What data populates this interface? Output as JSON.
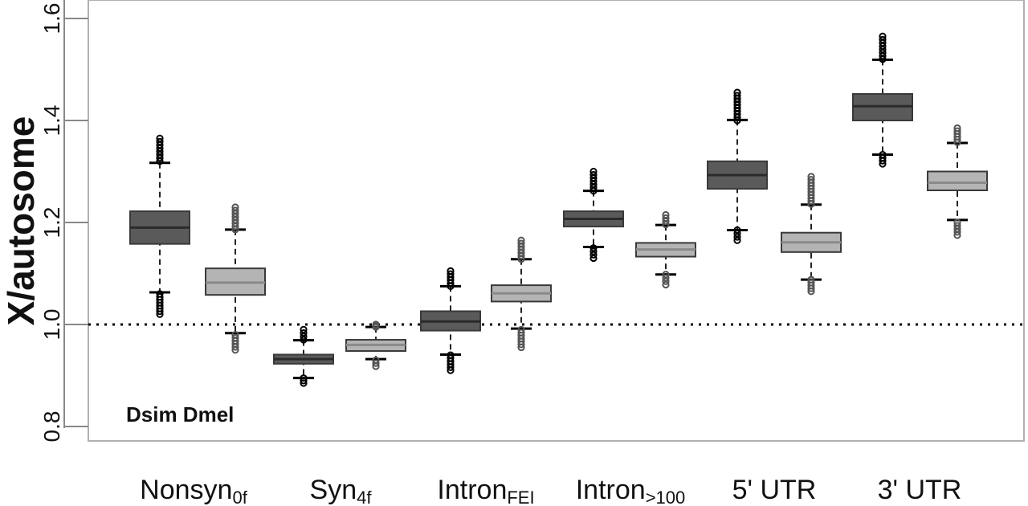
{
  "chart_data": {
    "type": "box",
    "ylabel": "X/autosome",
    "ylim": [
      0.78,
      1.62
    ],
    "yticks": [
      "0.8",
      "1.0",
      "1.2",
      "1.4",
      "1.6"
    ],
    "reference_line": 1.0,
    "legend": "Dsim Dmel",
    "colors": {
      "Dsim": "#5a5a5a",
      "Dmel": "#b4b4b4"
    },
    "categories": [
      {
        "label": "Nonsyn",
        "sub": "0f"
      },
      {
        "label": "Syn",
        "sub": "4f"
      },
      {
        "label": "Intron",
        "sub": "FEI"
      },
      {
        "label": "Intron",
        "sub": ">100"
      },
      {
        "label": "5' UTR",
        "sub": ""
      },
      {
        "label": "3' UTR",
        "sub": ""
      }
    ],
    "series": [
      {
        "name": "Dsim",
        "boxes": [
          {
            "min": 1.063,
            "q1": 1.158,
            "median": 1.19,
            "q3": 1.222,
            "max": 1.317,
            "outliers_low": [
              1.02,
              1.06
            ],
            "outliers_high": [
              1.32,
              1.365
            ]
          },
          {
            "min": 0.895,
            "q1": 0.923,
            "median": 0.932,
            "q3": 0.941,
            "max": 0.969,
            "outliers_low": [
              0.885,
              0.895
            ],
            "outliers_high": [
              0.97,
              0.99
            ]
          },
          {
            "min": 0.941,
            "q1": 0.988,
            "median": 1.006,
            "q3": 1.026,
            "max": 1.075,
            "outliers_low": [
              0.91,
              0.94
            ],
            "outliers_high": [
              1.075,
              1.105
            ]
          },
          {
            "min": 1.152,
            "q1": 1.192,
            "median": 1.207,
            "q3": 1.222,
            "max": 1.262,
            "outliers_low": [
              1.13,
              1.15
            ],
            "outliers_high": [
              1.262,
              1.3
            ]
          },
          {
            "min": 1.185,
            "q1": 1.266,
            "median": 1.293,
            "q3": 1.32,
            "max": 1.401,
            "outliers_low": [
              1.165,
              1.185
            ],
            "outliers_high": [
              1.4,
              1.455
            ]
          },
          {
            "min": 1.333,
            "q1": 1.4,
            "median": 1.428,
            "q3": 1.452,
            "max": 1.519,
            "outliers_low": [
              1.315,
              1.333
            ],
            "outliers_high": [
              1.52,
              1.565
            ]
          }
        ]
      },
      {
        "name": "Dmel",
        "boxes": [
          {
            "min": 0.983,
            "q1": 1.058,
            "median": 1.082,
            "q3": 1.11,
            "max": 1.186,
            "outliers_low": [
              0.95,
              0.98
            ],
            "outliers_high": [
              1.186,
              1.23
            ]
          },
          {
            "min": 0.932,
            "q1": 0.948,
            "median": 0.96,
            "q3": 0.97,
            "max": 0.995,
            "outliers_low": [
              0.918,
              0.93
            ],
            "outliers_high": [
              0.995,
              1.0
            ]
          },
          {
            "min": 0.992,
            "q1": 1.045,
            "median": 1.061,
            "q3": 1.077,
            "max": 1.128,
            "outliers_low": [
              0.955,
              0.99
            ],
            "outliers_high": [
              1.128,
              1.165
            ]
          },
          {
            "min": 1.098,
            "q1": 1.133,
            "median": 1.147,
            "q3": 1.16,
            "max": 1.195,
            "outliers_low": [
              1.078,
              1.098
            ],
            "outliers_high": [
              1.196,
              1.215
            ]
          },
          {
            "min": 1.088,
            "q1": 1.142,
            "median": 1.161,
            "q3": 1.18,
            "max": 1.235,
            "outliers_low": [
              1.065,
              1.088
            ],
            "outliers_high": [
              1.236,
              1.29
            ]
          },
          {
            "min": 1.205,
            "q1": 1.263,
            "median": 1.278,
            "q3": 1.3,
            "max": 1.356,
            "outliers_low": [
              1.175,
              1.2
            ],
            "outliers_high": [
              1.357,
              1.385
            ]
          }
        ]
      }
    ]
  }
}
